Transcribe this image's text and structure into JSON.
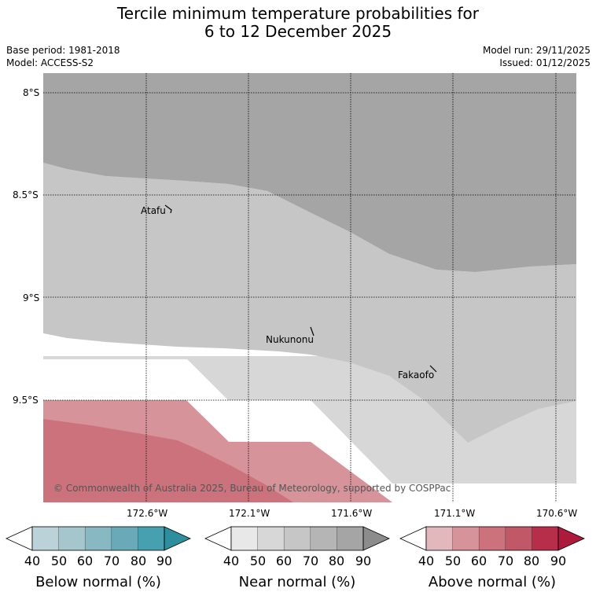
{
  "title": {
    "line1": "Tercile minimum temperature probabilities for",
    "line2": "6 to 12 December 2025"
  },
  "meta": {
    "base_period": "Base period: 1981-2018",
    "model": "Model: ACCESS-S2",
    "model_run": "Model run: 29/11/2025",
    "issued": "Issued: 01/12/2025"
  },
  "map": {
    "lat_labels": [
      "8°S",
      "8.5°S",
      "9°S",
      "9.5°S"
    ],
    "lon_labels": [
      "172.6°W",
      "172.1°W",
      "171.6°W",
      "171.1°W",
      "170.6°W"
    ],
    "places": [
      "Atafu",
      "Nukunonu",
      "Fakaofo"
    ],
    "copyright": "© Commonwealth of Australia 2025, Bureau of Meteorology, supported by COSPPac"
  },
  "colorbars": [
    {
      "name": "below-normal",
      "title": "Below normal (%)",
      "ticks": [
        "40",
        "50",
        "60",
        "70",
        "80",
        "90"
      ],
      "colors": [
        "#ffffff",
        "#bad2d8",
        "#a4c6cc",
        "#88b8c2",
        "#6aaab8",
        "#46a0b0",
        "#2d8f9e"
      ]
    },
    {
      "name": "near-normal",
      "title": "Near normal (%)",
      "ticks": [
        "40",
        "50",
        "60",
        "70",
        "80",
        "90"
      ],
      "colors": [
        "#ffffff",
        "#e8e8e8",
        "#d7d7d7",
        "#c6c6c6",
        "#b5b5b5",
        "#a5a5a5",
        "#8c8c8c"
      ]
    },
    {
      "name": "above-normal",
      "title": "Above normal (%)",
      "ticks": [
        "40",
        "50",
        "60",
        "70",
        "80",
        "90"
      ],
      "colors": [
        "#ffffff",
        "#e2b8bc",
        "#d6939a",
        "#cb727c",
        "#c05868",
        "#b72e4a",
        "#ad1a3c"
      ]
    }
  ]
}
